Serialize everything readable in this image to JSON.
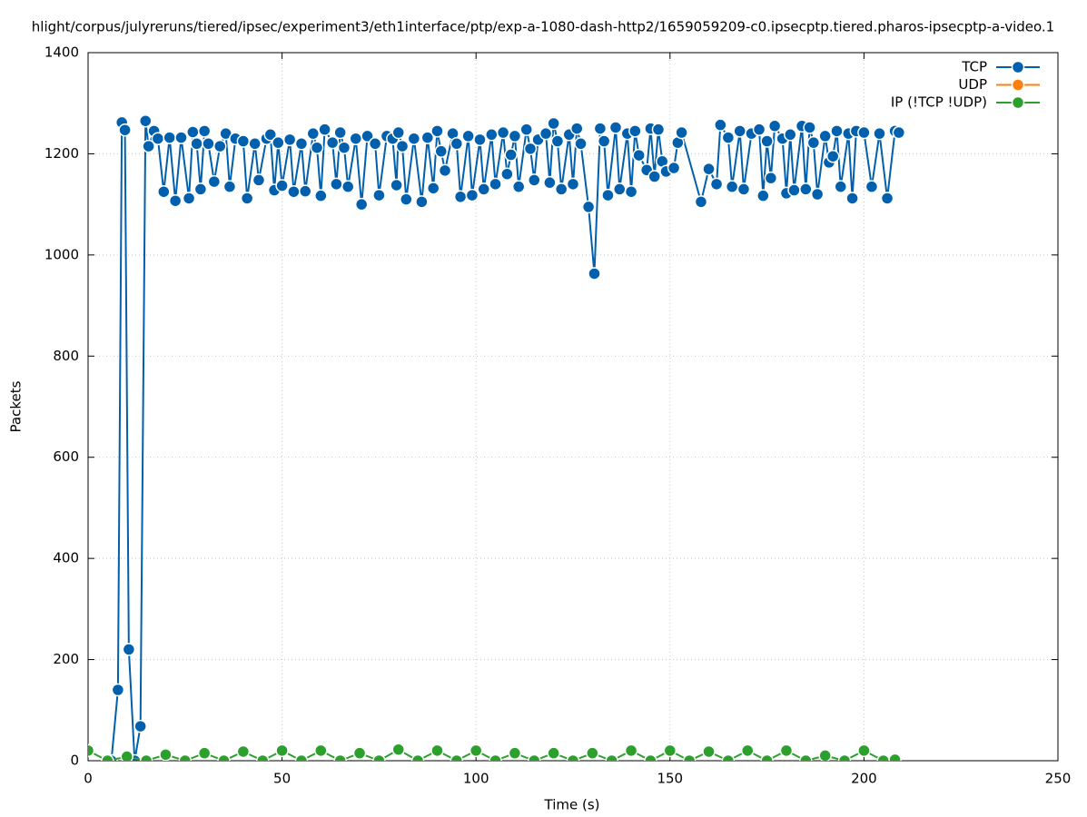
{
  "chart_data": {
    "type": "line",
    "title": "hlight/corpus/julyreruns/tiered/ipsec/experiment3/eth1interface/ptp/exp-a-1080-dash-http2/1659059209-c0.ipsecptp.tiered.pharos-ipsecptp-a-video.1",
    "x_label": "Time (s)",
    "y_label": "Packets",
    "xlim": [
      0,
      250
    ],
    "xticks": [
      0,
      50,
      100,
      150,
      200,
      250
    ],
    "ylim": [
      0,
      1400
    ],
    "yticks": [
      0,
      200,
      400,
      600,
      800,
      1000,
      1200,
      1400
    ],
    "grid": true,
    "legend": "top-right",
    "series": [
      {
        "name": "TCP",
        "color": "#0060ad",
        "x": [
          6,
          7.7,
          8.7,
          9.5,
          10.5,
          12,
          13.5,
          14.8,
          15.6,
          17,
          18,
          19.5,
          21,
          22.5,
          24,
          26,
          27,
          28,
          29,
          30,
          31,
          32.5,
          34,
          35.5,
          36.5,
          38,
          40,
          41,
          43,
          44,
          46,
          47,
          48,
          49,
          50,
          52,
          53,
          55,
          56,
          58,
          59,
          60,
          61,
          63,
          64,
          65,
          66,
          67,
          69,
          70.5,
          72,
          74,
          75,
          77,
          78.5,
          79.5,
          80,
          81,
          82,
          84,
          86,
          87.5,
          89,
          90,
          91,
          92,
          94,
          95,
          96,
          98,
          99,
          101,
          102,
          104,
          105,
          107,
          108,
          109,
          110,
          111,
          113,
          114,
          115,
          116,
          118,
          119,
          120,
          121,
          122,
          124,
          125,
          126,
          127,
          129,
          130.5,
          132,
          133,
          134,
          136,
          137,
          139,
          140,
          141,
          142,
          144,
          145,
          146,
          147,
          148,
          149,
          151,
          152,
          153,
          158,
          160,
          162,
          163,
          165,
          166,
          168,
          169,
          171,
          173,
          174,
          175,
          176,
          177,
          179,
          180,
          181,
          182,
          184,
          185,
          186,
          187,
          188,
          190,
          191,
          192,
          193,
          194,
          196,
          197,
          198,
          200,
          202,
          204,
          206,
          208,
          209
        ],
        "values": [
          0,
          140,
          1262,
          1247,
          220,
          0,
          68,
          1265,
          1215,
          1245,
          1230,
          1125,
          1232,
          1107,
          1232,
          1112,
          1243,
          1220,
          1130,
          1245,
          1220,
          1145,
          1215,
          1240,
          1135,
          1230,
          1225,
          1112,
          1220,
          1148,
          1230,
          1238,
          1128,
          1222,
          1137,
          1228,
          1125,
          1220,
          1126,
          1240,
          1212,
          1117,
          1248,
          1222,
          1140,
          1242,
          1212,
          1135,
          1230,
          1100,
          1235,
          1220,
          1118,
          1235,
          1230,
          1138,
          1242,
          1215,
          1110,
          1230,
          1105,
          1232,
          1132,
          1245,
          1205,
          1167,
          1240,
          1220,
          1115,
          1235,
          1118,
          1228,
          1130,
          1238,
          1140,
          1242,
          1160,
          1198,
          1235,
          1135,
          1248,
          1210,
          1148,
          1228,
          1240,
          1143,
          1260,
          1225,
          1130,
          1238,
          1140,
          1250,
          1220,
          1095,
          963,
          1250,
          1225,
          1118,
          1252,
          1130,
          1240,
          1125,
          1245,
          1197,
          1168,
          1250,
          1155,
          1248,
          1185,
          1165,
          1172,
          1222,
          1242,
          1105,
          1170,
          1140,
          1257,
          1232,
          1135,
          1245,
          1130,
          1240,
          1248,
          1117,
          1225,
          1152,
          1255,
          1230,
          1122,
          1238,
          1128,
          1255,
          1130,
          1252,
          1222,
          1120,
          1235,
          1183,
          1195,
          1245,
          1135,
          1240,
          1112,
          1245,
          1242,
          1135,
          1240,
          1112,
          1245,
          1242
        ]
      },
      {
        "name": "UDP",
        "color": "#ff7f0e",
        "x": [],
        "values": []
      },
      {
        "name": "IP (!TCP  !UDP)",
        "color": "#2ca02c",
        "x": [
          0,
          5,
          10,
          15,
          20,
          25,
          30,
          35,
          40,
          45,
          50,
          55,
          60,
          65,
          70,
          75,
          80,
          85,
          90,
          95,
          100,
          105,
          110,
          115,
          120,
          125,
          130,
          135,
          140,
          145,
          150,
          155,
          160,
          165,
          170,
          175,
          180,
          185,
          190,
          195,
          200,
          205,
          208
        ],
        "values": [
          20,
          0,
          8,
          0,
          12,
          0,
          15,
          0,
          18,
          0,
          20,
          0,
          20,
          0,
          15,
          0,
          22,
          0,
          20,
          0,
          20,
          0,
          15,
          0,
          15,
          0,
          15,
          0,
          20,
          0,
          20,
          0,
          18,
          0,
          20,
          0,
          20,
          0,
          10,
          0,
          20,
          0,
          2
        ]
      }
    ]
  }
}
